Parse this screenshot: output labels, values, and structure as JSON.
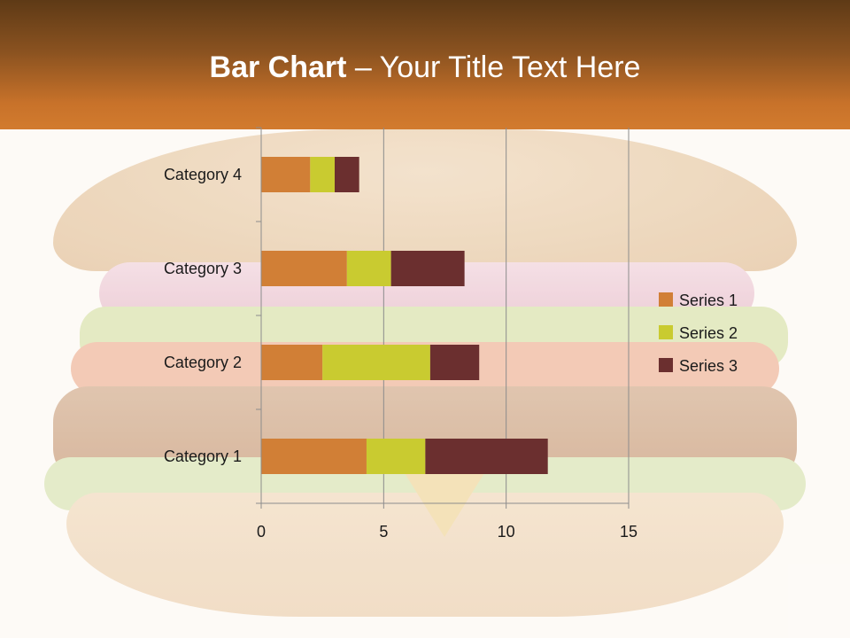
{
  "slide": {
    "title_bold": "Bar Chart",
    "title_rest": " – Your Title Text Here"
  },
  "colors": {
    "series1": "#d17f36",
    "series2": "#c9cb30",
    "series3": "#6b2f2f"
  },
  "chart_data": {
    "type": "bar",
    "orientation": "horizontal",
    "stacked": true,
    "categories": [
      "Category 1",
      "Category 2",
      "Category 3",
      "Category 4"
    ],
    "series": [
      {
        "name": "Series 1",
        "values": [
          4.3,
          2.5,
          3.5,
          2.0
        ]
      },
      {
        "name": "Series 2",
        "values": [
          2.4,
          4.4,
          1.8,
          1.0
        ]
      },
      {
        "name": "Series 3",
        "values": [
          5.0,
          2.0,
          3.0,
          1.0
        ]
      }
    ],
    "xlim": [
      0,
      15
    ],
    "xticks": [
      0,
      5,
      10,
      15
    ],
    "grid": "vertical",
    "legend": "right"
  }
}
